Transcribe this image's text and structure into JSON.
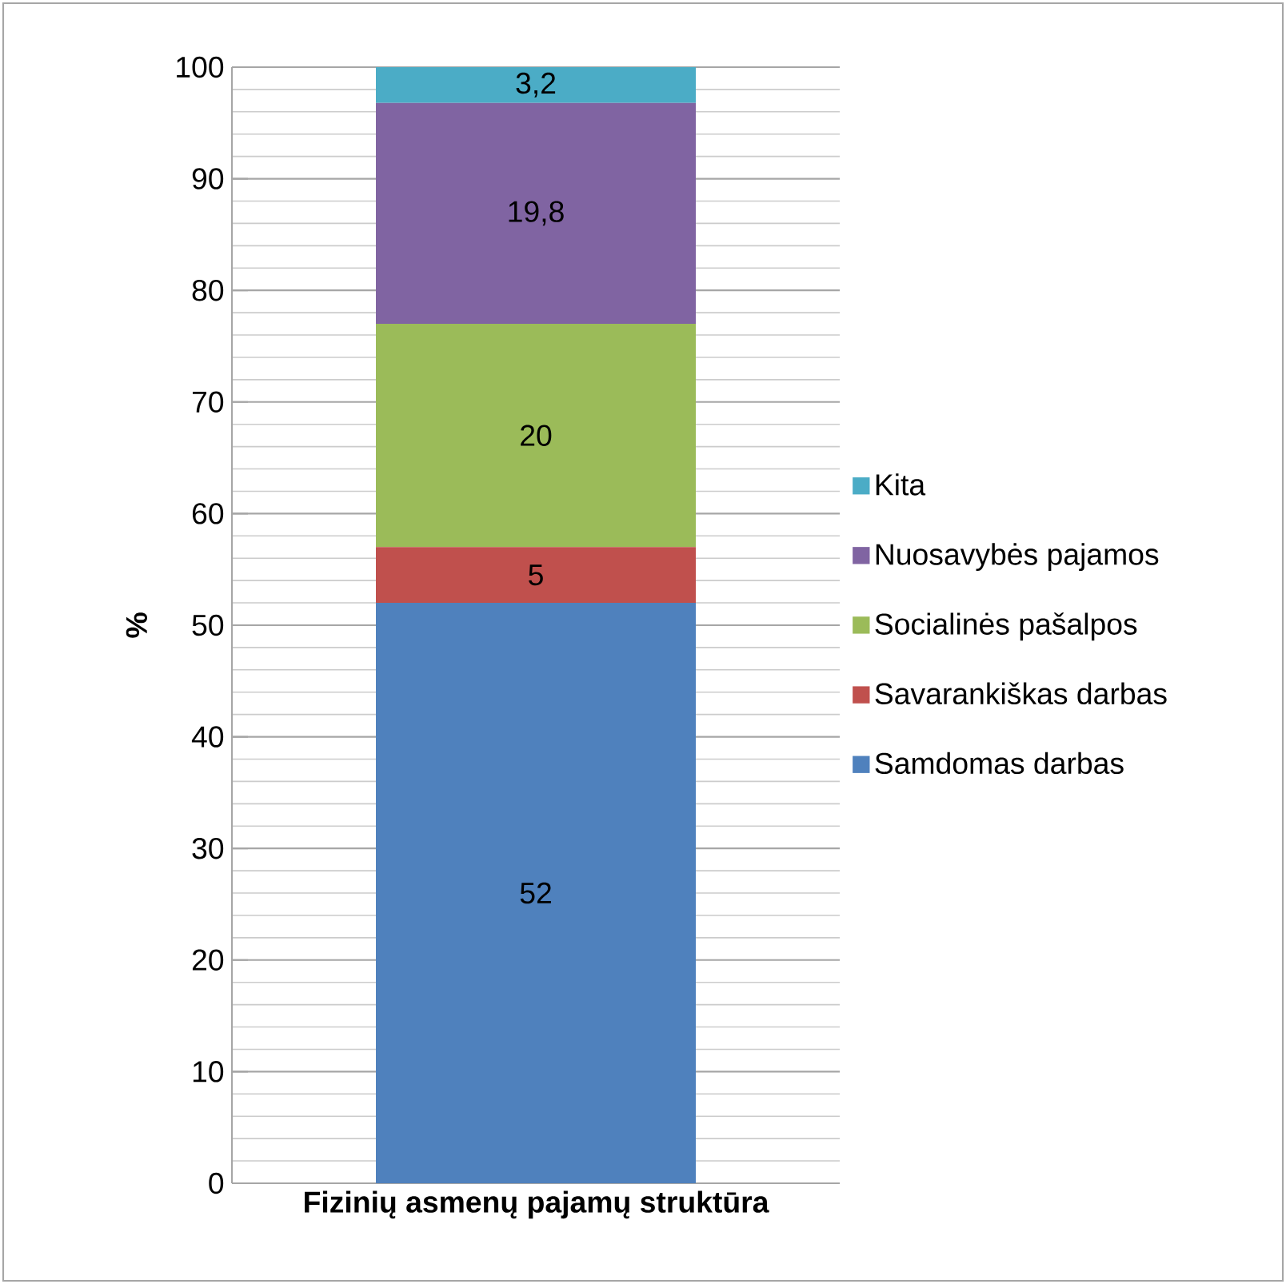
{
  "chart_data": {
    "type": "bar",
    "stacked": true,
    "categories": [
      "Fizinių asmenų pajamų struktūra"
    ],
    "ylabel": "%",
    "ylim": [
      0,
      100
    ],
    "yticks": [
      0,
      10,
      20,
      30,
      40,
      50,
      60,
      70,
      80,
      90,
      100
    ],
    "grid": "y",
    "legend": "right",
    "series": [
      {
        "name": "Samdomas darbas",
        "color": "#4f81bd",
        "values": [
          52
        ],
        "value_labels": [
          "52"
        ]
      },
      {
        "name": "Savarankiškas darbas",
        "color": "#c0504d",
        "values": [
          5
        ],
        "value_labels": [
          "5"
        ]
      },
      {
        "name": "Socialinės pašalpos",
        "color": "#9bbb59",
        "values": [
          20
        ],
        "value_labels": [
          "20"
        ]
      },
      {
        "name": "Nuosavybės pajamos",
        "color": "#8064a2",
        "values": [
          19.8
        ],
        "value_labels": [
          "19,8"
        ]
      },
      {
        "name": "Kita",
        "color": "#4bacc6",
        "values": [
          3.2
        ],
        "value_labels": [
          "3,2"
        ]
      }
    ]
  }
}
